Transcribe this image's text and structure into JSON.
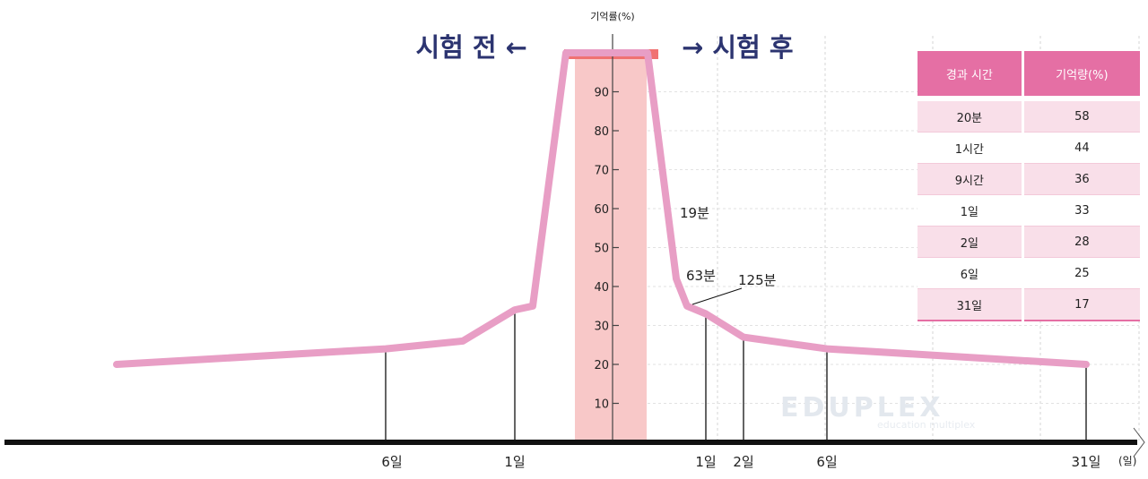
{
  "chart_data": {
    "type": "line",
    "ylabel": "기억률(%)",
    "yticks": [
      10,
      20,
      30,
      40,
      50,
      60,
      70,
      80,
      90
    ],
    "ylim": [
      0,
      100
    ],
    "phase_before": "시험 전 ←",
    "phase_after": "→ 시험 후",
    "before_x_labels": [
      "6일",
      "1일"
    ],
    "after_x_labels": [
      "1일",
      "2일",
      "6일",
      "31일"
    ],
    "x_unit": "(일)",
    "annotations": [
      "19분",
      "63분",
      "125분"
    ],
    "series": [
      {
        "values": [
          20,
          24,
          26,
          34,
          35,
          100,
          100,
          42,
          35,
          33,
          27,
          24,
          20
        ]
      }
    ],
    "colors": {
      "curve": "#e89ec5",
      "exam_band": "#f8c8c8",
      "exam_bar": "#f07272"
    },
    "grid": true
  },
  "table": {
    "headers": [
      "경과 시간",
      "기억량(%)"
    ],
    "rows": [
      [
        "20분",
        "58"
      ],
      [
        "1시간",
        "44"
      ],
      [
        "9시간",
        "36"
      ],
      [
        "1일",
        "33"
      ],
      [
        "2일",
        "28"
      ],
      [
        "6일",
        "25"
      ],
      [
        "31일",
        "17"
      ]
    ]
  },
  "watermark": {
    "brand": "EDUPLEX",
    "tagline": "education multiplex"
  }
}
